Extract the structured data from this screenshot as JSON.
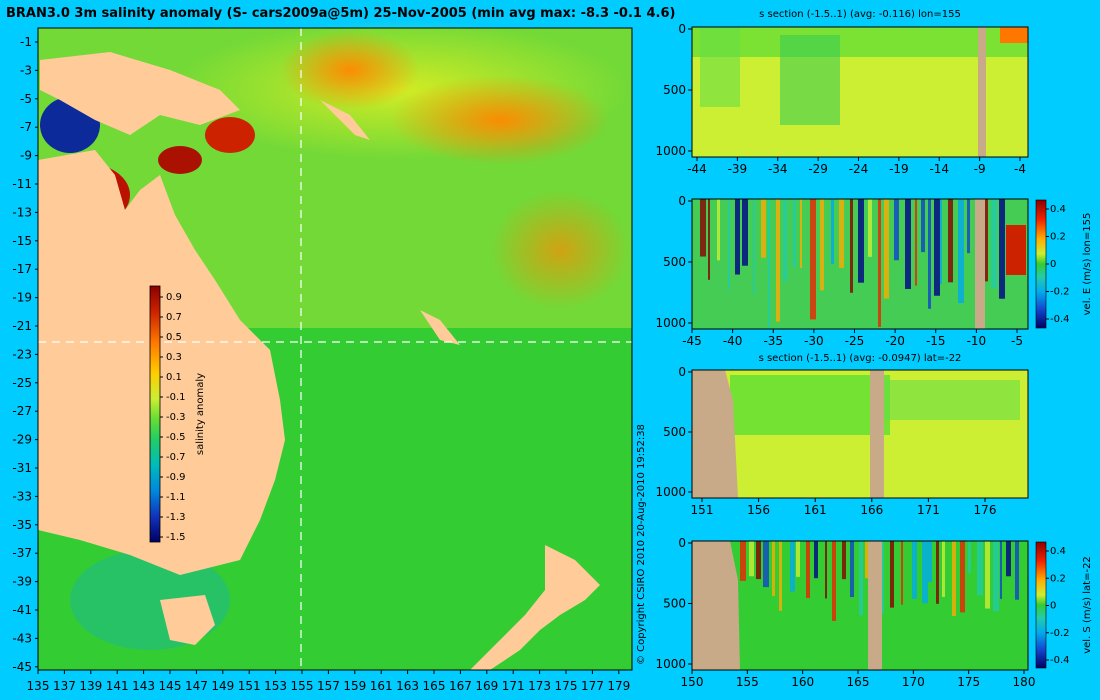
{
  "map": {
    "title": "BRAN3.0 3m salinity anomaly (S- cars2009a@5m) 25-Nov-2005 (min avg max: -8.3 -0.1 4.6)",
    "lat_labels": [
      "-1",
      "-3",
      "-5",
      "-7",
      "-9",
      "-11",
      "-13",
      "-15",
      "-17",
      "-19",
      "-21",
      "-23",
      "-25",
      "-27",
      "-29",
      "-31",
      "-33",
      "-35",
      "-37",
      "-39",
      "-41",
      "-43",
      "-45"
    ],
    "lon_labels": [
      "135",
      "137",
      "139",
      "141",
      "143",
      "145",
      "147",
      "149",
      "151",
      "153",
      "155",
      "157",
      "159",
      "161",
      "163",
      "165",
      "167",
      "169",
      "171",
      "173",
      "175",
      "177",
      "179"
    ],
    "colorbar": {
      "label": "salinity anomaly",
      "ticks": [
        "0.9",
        "0.7",
        "0.5",
        "0.3",
        "0.1",
        "-0.1",
        "-0.3",
        "-0.5",
        "-0.7",
        "-0.9",
        "-1.1",
        "-1.3",
        "-1.5"
      ]
    },
    "land_color": "#ffcc99",
    "ocean_color": "#33cc33"
  },
  "copyright": "© Copyright CSIRO 2010   20-Aug-2010 19:52:38",
  "panels": [
    {
      "title": "s section (-1.5..1) (avg: -0.116) lon=155",
      "x_labels": [
        "-44",
        "-39",
        "-34",
        "-29",
        "-24",
        "-19",
        "-14",
        "-9",
        "-4"
      ],
      "y_labels": [
        "0",
        "500",
        "1000"
      ],
      "colorbar": null
    },
    {
      "title": "",
      "x_labels": [
        "-45",
        "-40",
        "-35",
        "-30",
        "-25",
        "-20",
        "-15",
        "-10",
        "-5"
      ],
      "y_labels": [
        "0",
        "500",
        "1000"
      ],
      "colorbar": {
        "label": "vel. E (m/s) lon=155",
        "ticks": [
          "0.4",
          "0.2",
          "0",
          "-0.2",
          "-0.4"
        ]
      }
    },
    {
      "title": "s section (-1.5..1) (avg: -0.0947) lat=-22",
      "x_labels": [
        "151",
        "156",
        "161",
        "166",
        "171",
        "176"
      ],
      "y_labels": [
        "0",
        "500",
        "1000"
      ],
      "colorbar": null
    },
    {
      "title": "",
      "x_labels": [
        "150",
        "155",
        "160",
        "165",
        "170",
        "175",
        "180"
      ],
      "y_labels": [
        "0",
        "500",
        "1000"
      ],
      "colorbar": {
        "label": "vel. S (m/s) lat=-22",
        "ticks": [
          "0.4",
          "0.2",
          "0",
          "-0.2",
          "-0.4"
        ]
      }
    }
  ]
}
